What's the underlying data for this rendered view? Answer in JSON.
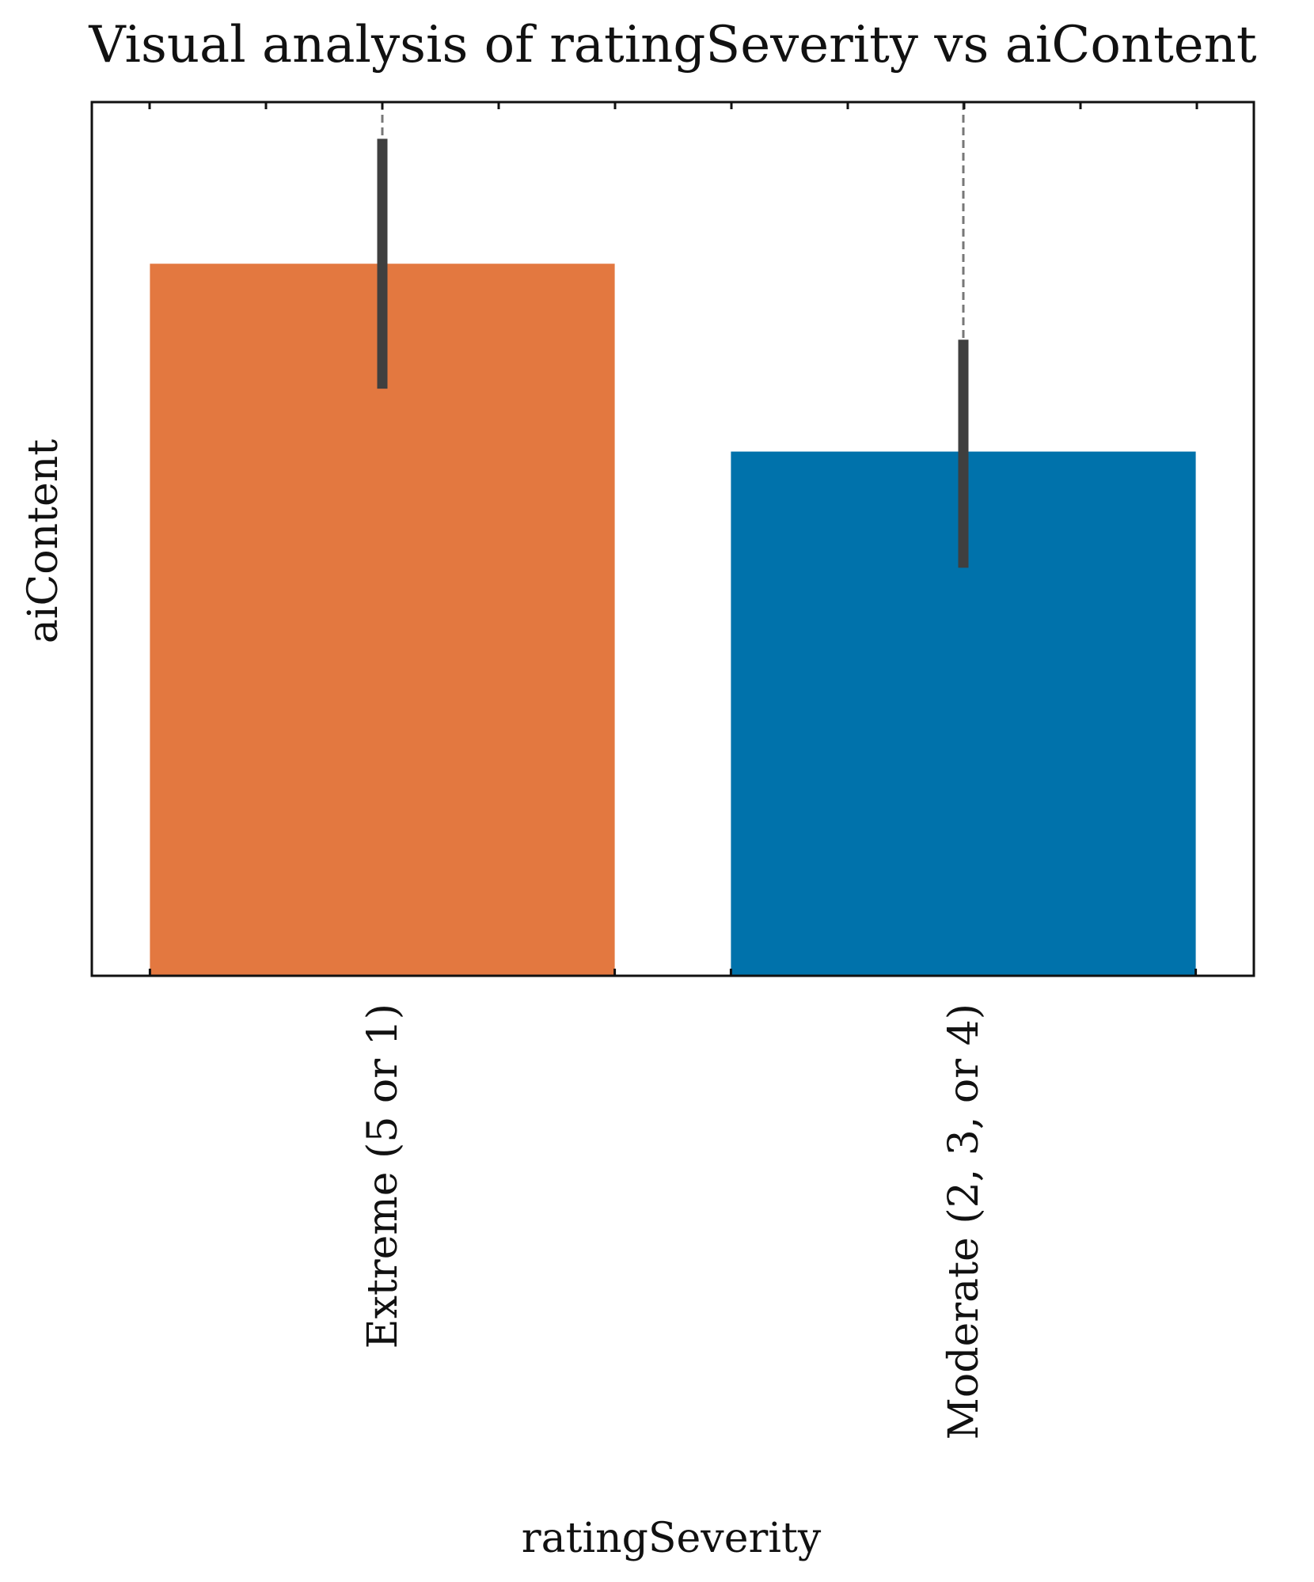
{
  "chart_data": {
    "type": "bar",
    "title": "Visual analysis of ratingSeverity vs aiContent",
    "xlabel": "ratingSeverity",
    "ylabel": "aiContent",
    "categories": [
      "Extreme (5 or 1)",
      "Moderate (2, 3, or 4)"
    ],
    "values": [
      0.815,
      0.6
    ],
    "error_low": [
      0.672,
      0.467
    ],
    "error_high": [
      0.958,
      0.728
    ],
    "whisker_top": [
      1.0,
      1.0
    ],
    "colors": [
      "#E37840",
      "#0072AB"
    ],
    "ylim": [
      0,
      1.0
    ],
    "grid": false,
    "y_tick_labels_visible": false
  }
}
